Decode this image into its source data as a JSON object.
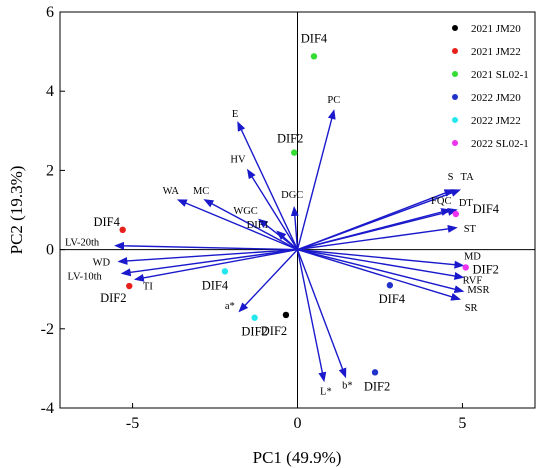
{
  "chart_data": {
    "type": "scatter",
    "subtype": "pca-biplot",
    "xlabel": "PC1 (49.9%)",
    "ylabel": "PC2 (19.3%)",
    "xlim": [
      -7.2,
      7.2
    ],
    "ylim": [
      -4,
      6
    ],
    "xticks": [
      -5,
      0,
      5
    ],
    "yticks": [
      -4,
      -2,
      0,
      2,
      4,
      6
    ],
    "grid": false,
    "legend_position": "top-right",
    "legend": [
      {
        "name": "2021 JM20",
        "color": "#000000"
      },
      {
        "name": "2021 JM22",
        "color": "#e8201c"
      },
      {
        "name": "2021 SL02-1",
        "color": "#33dd33"
      },
      {
        "name": "2022 JM20",
        "color": "#2233cc"
      },
      {
        "name": "2022 JM22",
        "color": "#22e8ee"
      },
      {
        "name": "2022 SL02-1",
        "color": "#ee33ee"
      }
    ],
    "vector_color": "#1a1acc",
    "vectors": [
      {
        "label": "PC",
        "x": 1.1,
        "y": 3.5
      },
      {
        "label": "E",
        "x": -1.8,
        "y": 3.2
      },
      {
        "label": "HV",
        "x": -1.5,
        "y": 2.0
      },
      {
        "label": "MC",
        "x": -2.8,
        "y": 1.25
      },
      {
        "label": "WA",
        "x": -3.6,
        "y": 1.25
      },
      {
        "label": "WGC",
        "x": -1.15,
        "y": 0.75
      },
      {
        "label": "DGC",
        "x": -0.1,
        "y": 1.05
      },
      {
        "label": "DIF1",
        "x": -0.6,
        "y": 0.45
      },
      {
        "label": "S",
        "x": 4.7,
        "y": 1.5
      },
      {
        "label": "TA",
        "x": 4.9,
        "y": 1.5
      },
      {
        "label": "FQC",
        "x": 4.6,
        "y": 1.0
      },
      {
        "label": "DT",
        "x": 4.8,
        "y": 1.0
      },
      {
        "label": "ST",
        "x": 4.8,
        "y": 0.55
      },
      {
        "label": "MD",
        "x": 5.0,
        "y": -0.4
      },
      {
        "label": "RVF",
        "x": 5.0,
        "y": -0.7
      },
      {
        "label": "MSR",
        "x": 5.0,
        "y": -1.05
      },
      {
        "label": "SR",
        "x": 4.9,
        "y": -1.25
      },
      {
        "label": "LV-20th",
        "x": -5.5,
        "y": 0.1
      },
      {
        "label": "WD",
        "x": -5.4,
        "y": -0.3
      },
      {
        "label": "LV-10th",
        "x": -5.3,
        "y": -0.6
      },
      {
        "label": "TI",
        "x": -4.9,
        "y": -0.75
      },
      {
        "label": "a*",
        "x": -1.75,
        "y": -1.55
      },
      {
        "label": "L*",
        "x": 0.8,
        "y": -3.3
      },
      {
        "label": "b*",
        "x": 1.45,
        "y": -3.2
      }
    ],
    "points": [
      {
        "group": "2021 JM20",
        "x": -0.35,
        "y": -1.65,
        "label": "DIF2"
      },
      {
        "group": "2021 JM22",
        "x": -5.3,
        "y": 0.5,
        "label": "DIF4"
      },
      {
        "group": "2021 JM22",
        "x": -5.1,
        "y": -0.92,
        "label": "DIF2"
      },
      {
        "group": "2021 SL02-1",
        "x": 0.5,
        "y": 4.88,
        "label": "DIF4"
      },
      {
        "group": "2021 SL02-1",
        "x": -0.1,
        "y": 2.45,
        "label": "DIF2"
      },
      {
        "group": "2022 JM20",
        "x": 2.8,
        "y": -0.9,
        "label": "DIF4"
      },
      {
        "group": "2022 JM20",
        "x": 2.35,
        "y": -3.1,
        "label": "DIF2"
      },
      {
        "group": "2022 JM22",
        "x": -2.2,
        "y": -0.55,
        "label": "DIF4"
      },
      {
        "group": "2022 JM22",
        "x": -1.3,
        "y": -1.72,
        "label": "DIF2"
      },
      {
        "group": "2022 SL02-1",
        "x": 4.8,
        "y": 0.9,
        "label": "DIF4"
      },
      {
        "group": "2022 SL02-1",
        "x": 5.1,
        "y": -0.45,
        "label": "DIF2"
      }
    ]
  }
}
